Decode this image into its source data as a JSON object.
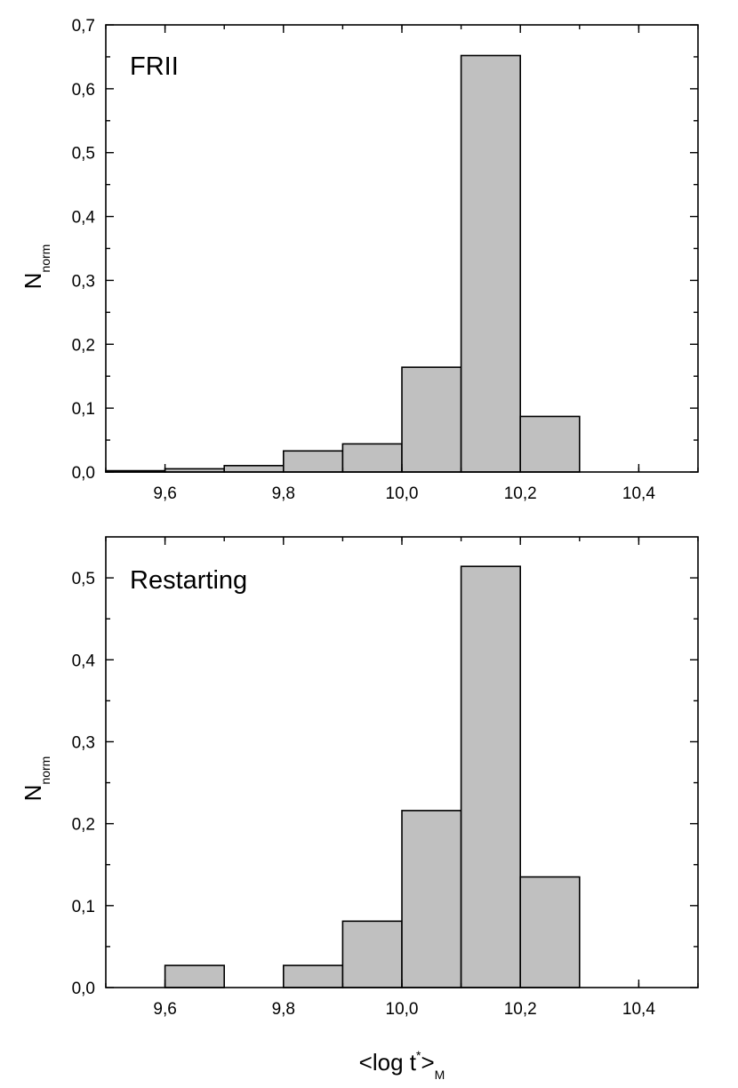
{
  "chart_data": [
    {
      "type": "bar",
      "annotation": "FRII",
      "ylabel": "N",
      "ylabel_sub": "norm",
      "xlabel": "",
      "xlim": [
        9.5,
        10.5
      ],
      "ylim": [
        0,
        0.7
      ],
      "x_ticks": [
        "9,6",
        "9,8",
        "10,0",
        "10,2",
        "10,4"
      ],
      "y_ticks": [
        "0,0",
        "0,1",
        "0,2",
        "0,3",
        "0,4",
        "0,5",
        "0,6",
        "0,7"
      ],
      "bin_width": 0.1,
      "bins": [
        9.5,
        9.6,
        9.7,
        9.8,
        9.9,
        10.0,
        10.1,
        10.2
      ],
      "values": [
        0.002,
        0.005,
        0.01,
        0.033,
        0.044,
        0.164,
        0.652,
        0.087
      ],
      "bar_color": "#c0c0c0"
    },
    {
      "type": "bar",
      "annotation": "Restarting",
      "ylabel": "N",
      "ylabel_sub": "norm",
      "xlabel": "<log t",
      "xlabel_sup": "*",
      "xlabel_close": ">",
      "xlabel_sub": "M",
      "xlim": [
        9.5,
        10.5
      ],
      "ylim": [
        0,
        0.55
      ],
      "x_ticks": [
        "9,6",
        "9,8",
        "10,0",
        "10,2",
        "10,4"
      ],
      "y_ticks": [
        "0,0",
        "0,1",
        "0,2",
        "0,3",
        "0,4",
        "0,5"
      ],
      "bin_width": 0.1,
      "bins": [
        9.6,
        9.8,
        9.9,
        10.0,
        10.1,
        10.2
      ],
      "values": [
        0.027,
        0.027,
        0.081,
        0.216,
        0.514,
        0.135
      ],
      "bar_color": "#c0c0c0"
    }
  ]
}
